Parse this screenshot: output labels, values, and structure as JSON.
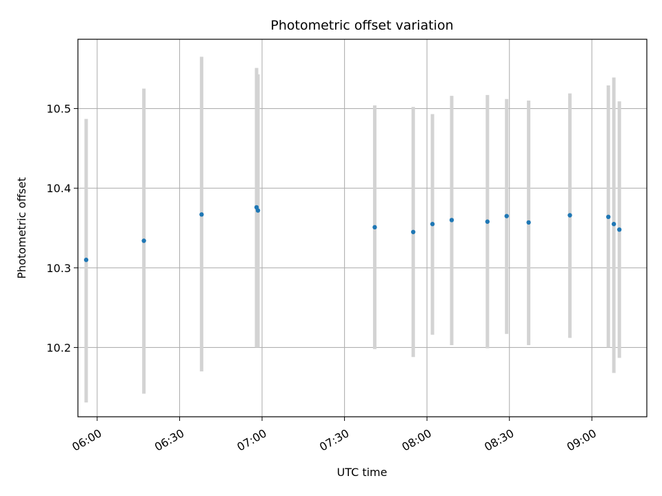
{
  "chart_data": {
    "type": "scatter",
    "title": "Photometric offset variation",
    "xlabel": "UTC time",
    "ylabel": "Photometric offset",
    "grid": true,
    "xlim": [
      "05:53",
      "09:20"
    ],
    "ylim": [
      10.113,
      10.587
    ],
    "x_ticks": [
      "06:00",
      "06:30",
      "07:00",
      "07:30",
      "08:00",
      "08:30",
      "09:00"
    ],
    "y_ticks": [
      "10.2",
      "10.3",
      "10.4",
      "10.5"
    ],
    "series": [
      {
        "marker_color": "#1f77b4",
        "errorbar_color": "#d3d3d3",
        "points": [
          {
            "x": "05:56",
            "y": 10.31,
            "low": 10.131,
            "high": 10.487
          },
          {
            "x": "06:17",
            "y": 10.334,
            "low": 10.142,
            "high": 10.525
          },
          {
            "x": "06:38",
            "y": 10.367,
            "low": 10.17,
            "high": 10.565
          },
          {
            "x": "06:58",
            "y": 10.376,
            "low": 10.2,
            "high": 10.551
          },
          {
            "x": "06:58",
            "y": 10.372,
            "low": 10.2,
            "high": 10.543
          },
          {
            "x": "07:41",
            "y": 10.351,
            "low": 10.198,
            "high": 10.504
          },
          {
            "x": "07:55",
            "y": 10.345,
            "low": 10.188,
            "high": 10.502
          },
          {
            "x": "08:02",
            "y": 10.355,
            "low": 10.216,
            "high": 10.493
          },
          {
            "x": "08:09",
            "y": 10.36,
            "low": 10.203,
            "high": 10.516
          },
          {
            "x": "08:22",
            "y": 10.358,
            "low": 10.199,
            "high": 10.517
          },
          {
            "x": "08:29",
            "y": 10.365,
            "low": 10.217,
            "high": 10.512
          },
          {
            "x": "08:37",
            "y": 10.357,
            "low": 10.203,
            "high": 10.51
          },
          {
            "x": "08:52",
            "y": 10.366,
            "low": 10.212,
            "high": 10.519
          },
          {
            "x": "09:06",
            "y": 10.364,
            "low": 10.2,
            "high": 10.529
          },
          {
            "x": "09:08",
            "y": 10.355,
            "low": 10.168,
            "high": 10.539
          },
          {
            "x": "09:10",
            "y": 10.348,
            "low": 10.187,
            "high": 10.509
          }
        ]
      }
    ]
  }
}
